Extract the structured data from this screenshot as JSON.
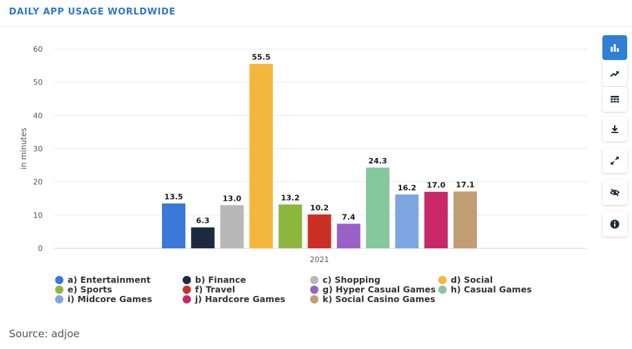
{
  "page": {
    "title": "DAILY APP USAGE WORLDWIDE",
    "source": "Source: adjoe"
  },
  "toolbar": {
    "buttons": [
      {
        "name": "bar-chart",
        "icon": "bar-chart-icon",
        "active": true
      },
      {
        "name": "line-chart",
        "icon": "line-chart-icon",
        "active": false
      },
      {
        "name": "table-view",
        "icon": "table-icon",
        "active": false
      },
      {
        "name": "download",
        "icon": "download-icon",
        "active": false
      },
      {
        "name": "fullscreen",
        "icon": "expand-icon",
        "active": false
      },
      {
        "name": "hide",
        "icon": "eye-off-icon",
        "active": false
      },
      {
        "name": "info",
        "icon": "info-icon",
        "active": false
      }
    ],
    "accent": "#2f7fd4"
  },
  "chart_data": {
    "type": "bar",
    "title": "DAILY APP USAGE WORLDWIDE",
    "xlabel": "",
    "ylabel": "in minutes",
    "categories": [
      "2021"
    ],
    "ylim": [
      0,
      60
    ],
    "yticks": [
      0,
      10,
      20,
      30,
      40,
      50,
      60
    ],
    "grid": true,
    "legend_position": "bottom",
    "series": [
      {
        "name": "a) Entertainment",
        "values": [
          13.5
        ],
        "label": "13.5",
        "color": "#3b78d8"
      },
      {
        "name": "b) Finance",
        "values": [
          6.3
        ],
        "label": "6.3",
        "color": "#1b2a41"
      },
      {
        "name": "c) Shopping",
        "values": [
          13.0
        ],
        "label": "13.0",
        "color": "#b8b8b8"
      },
      {
        "name": "d) Social",
        "values": [
          55.5
        ],
        "label": "55.5",
        "color": "#f4b63c"
      },
      {
        "name": "e) Sports",
        "values": [
          13.2
        ],
        "label": "13.2",
        "color": "#8db63f"
      },
      {
        "name": "f) Travel",
        "values": [
          10.2
        ],
        "label": "10.2",
        "color": "#cc3024"
      },
      {
        "name": "g) Hyper Casual Games",
        "values": [
          7.4
        ],
        "label": "7.4",
        "color": "#9b5fc8"
      },
      {
        "name": "h) Casual Games",
        "values": [
          24.3
        ],
        "label": "24.3",
        "color": "#86c79c"
      },
      {
        "name": "i) Midcore Games",
        "values": [
          16.2
        ],
        "label": "16.2",
        "color": "#7ea6e0"
      },
      {
        "name": "j) Hardcore Games",
        "values": [
          17.0
        ],
        "label": "17.0",
        "color": "#c82868"
      },
      {
        "name": "k) Social Casino Games",
        "values": [
          17.1
        ],
        "label": "17.1",
        "color": "#c29d74"
      }
    ]
  }
}
